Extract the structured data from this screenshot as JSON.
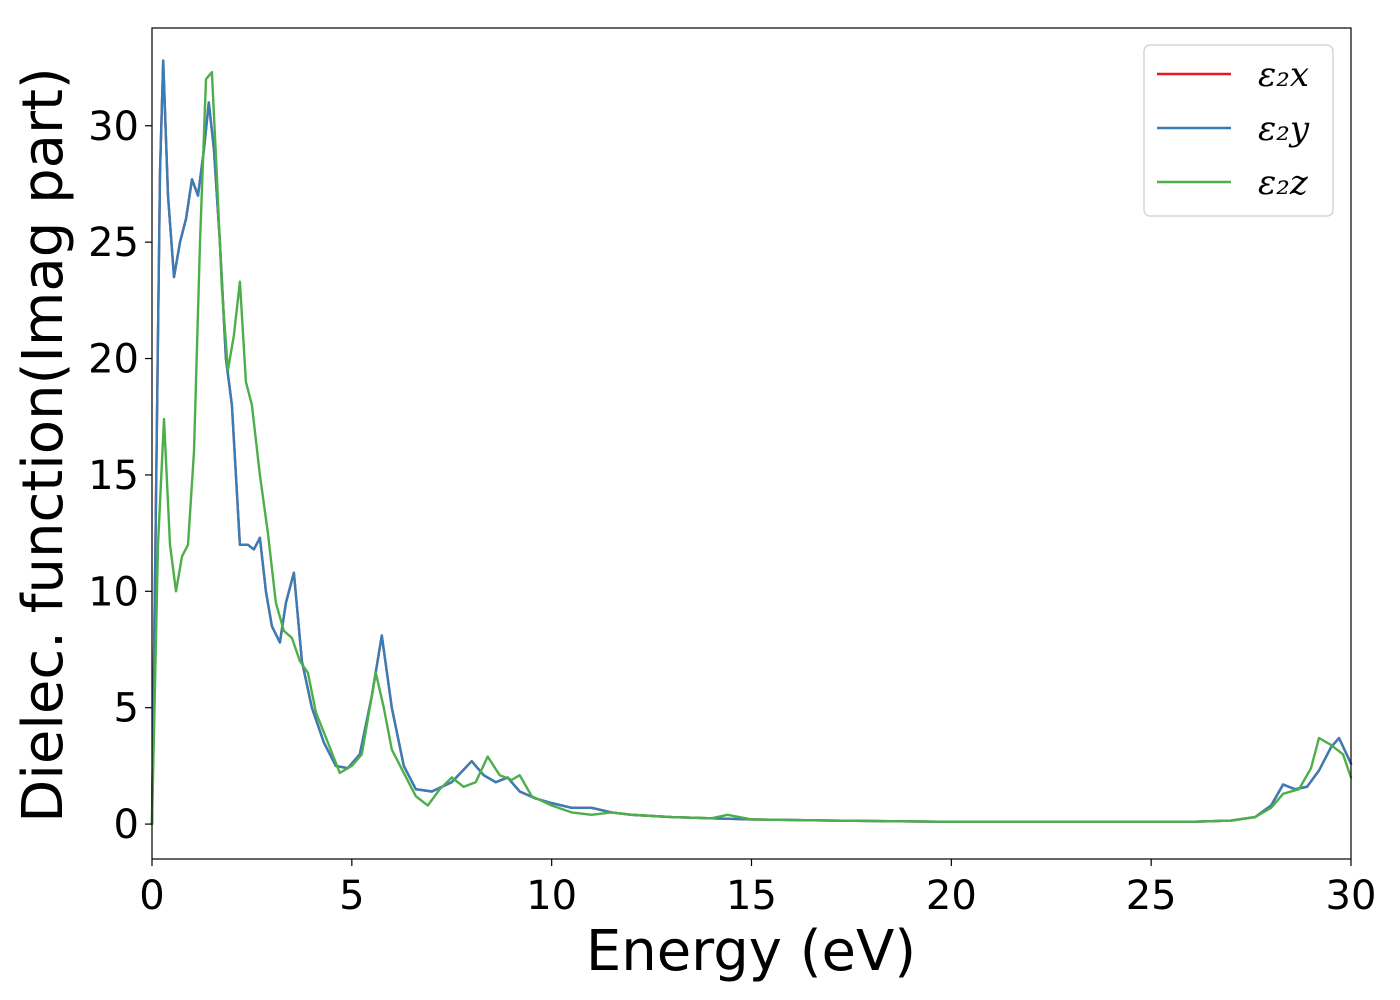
{
  "chart_data": {
    "type": "line",
    "title": "",
    "xlabel": "Energy (eV)",
    "ylabel": "Dielec. function(Imag part)",
    "xlim": [
      0,
      30
    ],
    "ylim": [
      -1.5,
      34.2
    ],
    "xticks": [
      0,
      5,
      10,
      15,
      20,
      25,
      30
    ],
    "yticks": [
      0,
      5,
      10,
      15,
      20,
      25,
      30
    ],
    "grid": false,
    "legend_position": "top-right",
    "series": [
      {
        "name": "ε₂x",
        "color": "#e41a1c",
        "x": [
          0,
          0.1,
          0.2,
          0.28,
          0.4,
          0.55,
          0.7,
          0.85,
          1.0,
          1.15,
          1.3,
          1.42,
          1.55,
          1.7,
          1.85,
          2.0,
          2.2,
          2.4,
          2.55,
          2.7,
          2.85,
          3.0,
          3.2,
          3.35,
          3.55,
          3.75,
          4.0,
          4.3,
          4.6,
          4.9,
          5.2,
          5.5,
          5.75,
          6.0,
          6.3,
          6.6,
          7.0,
          7.5,
          8.0,
          8.3,
          8.6,
          8.9,
          9.2,
          9.6,
          10.0,
          10.5,
          11.0,
          11.5,
          12.0,
          13.0,
          14.0,
          15.0,
          17.0,
          20.0,
          23.0,
          26.0,
          27.0,
          27.6,
          28.0,
          28.3,
          28.6,
          28.9,
          29.2,
          29.5,
          29.7,
          30.0
        ],
        "y": [
          0,
          14,
          28,
          32.8,
          27,
          23.5,
          25,
          26,
          27.7,
          27,
          29,
          31,
          29,
          25,
          20,
          18,
          12,
          12,
          11.8,
          12.3,
          10,
          8.5,
          7.8,
          9.5,
          10.8,
          7,
          5,
          3.5,
          2.5,
          2.4,
          3,
          5.5,
          8.1,
          5,
          2.5,
          1.5,
          1.4,
          1.8,
          2.7,
          2.1,
          1.8,
          2,
          1.4,
          1.1,
          0.9,
          0.7,
          0.7,
          0.5,
          0.4,
          0.3,
          0.25,
          0.2,
          0.15,
          0.1,
          0.1,
          0.1,
          0.15,
          0.3,
          0.8,
          1.7,
          1.5,
          1.6,
          2.3,
          3.3,
          3.7,
          2.6
        ]
      },
      {
        "name": "ε₂y",
        "color": "#377eb8",
        "x": [
          0,
          0.1,
          0.2,
          0.28,
          0.4,
          0.55,
          0.7,
          0.85,
          1.0,
          1.15,
          1.3,
          1.42,
          1.55,
          1.7,
          1.85,
          2.0,
          2.2,
          2.4,
          2.55,
          2.7,
          2.85,
          3.0,
          3.2,
          3.35,
          3.55,
          3.75,
          4.0,
          4.3,
          4.6,
          4.9,
          5.2,
          5.5,
          5.75,
          6.0,
          6.3,
          6.6,
          7.0,
          7.5,
          8.0,
          8.3,
          8.6,
          8.9,
          9.2,
          9.6,
          10.0,
          10.5,
          11.0,
          11.5,
          12.0,
          13.0,
          14.0,
          15.0,
          17.0,
          20.0,
          23.0,
          26.0,
          27.0,
          27.6,
          28.0,
          28.3,
          28.6,
          28.9,
          29.2,
          29.5,
          29.7,
          30.0
        ],
        "y": [
          0,
          14,
          28,
          32.8,
          27,
          23.5,
          25,
          26,
          27.7,
          27,
          29,
          31,
          29,
          25,
          20,
          18,
          12,
          12,
          11.8,
          12.3,
          10,
          8.5,
          7.8,
          9.5,
          10.8,
          7,
          5,
          3.5,
          2.5,
          2.4,
          3,
          5.5,
          8.1,
          5,
          2.5,
          1.5,
          1.4,
          1.8,
          2.7,
          2.1,
          1.8,
          2,
          1.4,
          1.1,
          0.9,
          0.7,
          0.7,
          0.5,
          0.4,
          0.3,
          0.25,
          0.2,
          0.15,
          0.1,
          0.1,
          0.1,
          0.15,
          0.3,
          0.8,
          1.7,
          1.5,
          1.6,
          2.3,
          3.3,
          3.7,
          2.6
        ]
      },
      {
        "name": "ε₂z",
        "color": "#4daf4a",
        "x": [
          0,
          0.15,
          0.3,
          0.45,
          0.6,
          0.75,
          0.9,
          1.05,
          1.2,
          1.35,
          1.5,
          1.62,
          1.75,
          1.9,
          2.05,
          2.2,
          2.35,
          2.5,
          2.7,
          2.9,
          3.1,
          3.3,
          3.5,
          3.7,
          3.9,
          4.1,
          4.4,
          4.7,
          5.0,
          5.25,
          5.45,
          5.6,
          5.8,
          6.0,
          6.3,
          6.6,
          6.9,
          7.2,
          7.5,
          7.8,
          8.1,
          8.4,
          8.7,
          9.0,
          9.2,
          9.5,
          10.0,
          10.5,
          11.0,
          11.5,
          12.0,
          13.0,
          14.0,
          14.4,
          15.0,
          17.0,
          20.0,
          23.0,
          26.0,
          27.0,
          27.6,
          28.0,
          28.3,
          28.7,
          29.0,
          29.2,
          29.5,
          29.8,
          30.0
        ],
        "y": [
          0,
          12,
          17.4,
          12,
          10,
          11.5,
          12,
          16,
          25,
          32,
          32.3,
          28,
          23,
          19.5,
          21,
          23.3,
          19,
          18,
          15,
          12.5,
          9.5,
          8.3,
          8,
          7,
          6.5,
          4.8,
          3.5,
          2.2,
          2.5,
          3,
          5,
          6.5,
          5,
          3.2,
          2.2,
          1.2,
          0.8,
          1.5,
          2,
          1.6,
          1.8,
          2.9,
          2.1,
          1.9,
          2.1,
          1.2,
          0.8,
          0.5,
          0.4,
          0.5,
          0.4,
          0.3,
          0.25,
          0.4,
          0.2,
          0.15,
          0.1,
          0.1,
          0.1,
          0.15,
          0.3,
          0.7,
          1.3,
          1.5,
          2.4,
          3.7,
          3.4,
          3.0,
          2.0
        ]
      }
    ]
  }
}
